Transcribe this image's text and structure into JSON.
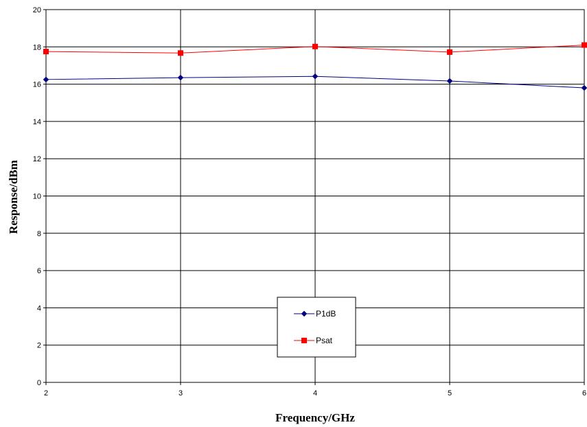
{
  "chart_data": {
    "type": "line",
    "title": "",
    "xlabel": "Frequency/GHz",
    "ylabel": "Response/dBm",
    "x": [
      2,
      3,
      4,
      5,
      6
    ],
    "xlim": [
      2,
      6
    ],
    "ylim": [
      0,
      20
    ],
    "x_ticks": [
      "2",
      "3",
      "4",
      "5",
      "6"
    ],
    "y_ticks": [
      "0",
      "2",
      "4",
      "6",
      "8",
      "10",
      "12",
      "14",
      "16",
      "18",
      "20"
    ],
    "grid": true,
    "legend_position": "bottom-center",
    "series": [
      {
        "name": "P1dB",
        "color": "#000080",
        "marker": "diamond",
        "values": [
          16.25,
          16.35,
          16.42,
          16.17,
          15.8
        ]
      },
      {
        "name": "Psat",
        "color": "#ff0000",
        "marker": "square",
        "values": [
          17.75,
          17.67,
          18.02,
          17.72,
          18.1
        ]
      }
    ]
  }
}
